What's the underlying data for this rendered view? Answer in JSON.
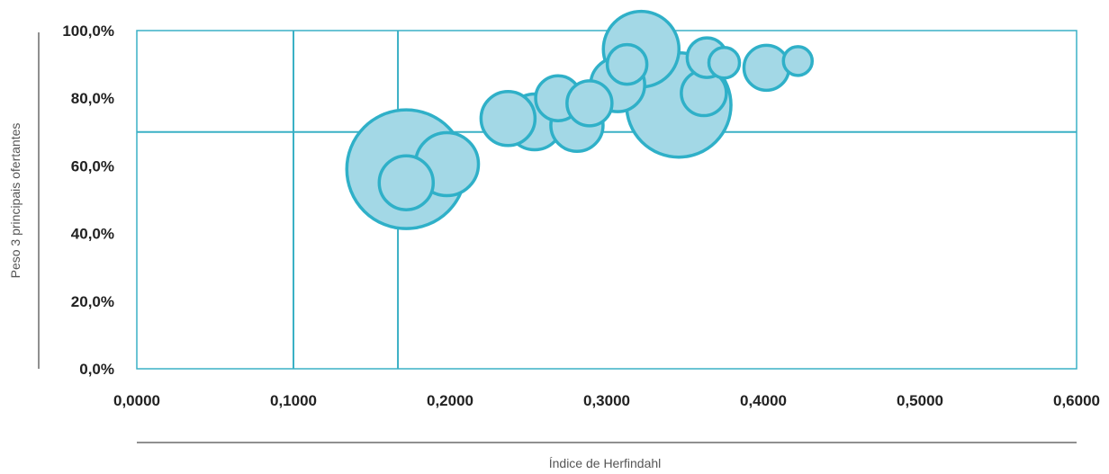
{
  "chart_data": {
    "type": "bubble",
    "xlabel": "Índice de Herfindahl",
    "ylabel": "Peso 3 principais ofertantes",
    "xlim": [
      0,
      0.6
    ],
    "ylim": [
      0,
      1.0
    ],
    "x_ticks": [
      "0,0000",
      "0,1000",
      "0,2000",
      "0,3000",
      "0,4000",
      "0,5000",
      "0,6000"
    ],
    "y_ticks": [
      "0,0%",
      "20,0%",
      "40,0%",
      "60,0%",
      "80,0%",
      "100,0%"
    ],
    "reference_lines": {
      "vertical": [
        0.1,
        0.1667
      ],
      "horizontal": [
        0.7
      ]
    },
    "grid": false,
    "legend": "none",
    "colors": {
      "bubble_fill": "#a3d8e6",
      "bubble_stroke": "#2fb0c8",
      "line": "#3ab0c5",
      "axis": "#222222"
    },
    "points": [
      {
        "x": 0.172,
        "y": 0.59,
        "size": 66
      },
      {
        "x": 0.346,
        "y": 0.78,
        "size": 58
      },
      {
        "x": 0.322,
        "y": 0.945,
        "size": 42
      },
      {
        "x": 0.254,
        "y": 0.73,
        "size": 31
      },
      {
        "x": 0.281,
        "y": 0.72,
        "size": 29
      },
      {
        "x": 0.198,
        "y": 0.605,
        "size": 35
      },
      {
        "x": 0.237,
        "y": 0.74,
        "size": 30
      },
      {
        "x": 0.307,
        "y": 0.84,
        "size": 30
      },
      {
        "x": 0.172,
        "y": 0.55,
        "size": 30
      },
      {
        "x": 0.269,
        "y": 0.8,
        "size": 25
      },
      {
        "x": 0.289,
        "y": 0.785,
        "size": 25
      },
      {
        "x": 0.313,
        "y": 0.9,
        "size": 22
      },
      {
        "x": 0.364,
        "y": 0.92,
        "size": 22
      },
      {
        "x": 0.402,
        "y": 0.89,
        "size": 25
      },
      {
        "x": 0.362,
        "y": 0.815,
        "size": 25
      },
      {
        "x": 0.375,
        "y": 0.905,
        "size": 17
      },
      {
        "x": 0.422,
        "y": 0.91,
        "size": 16
      }
    ]
  }
}
